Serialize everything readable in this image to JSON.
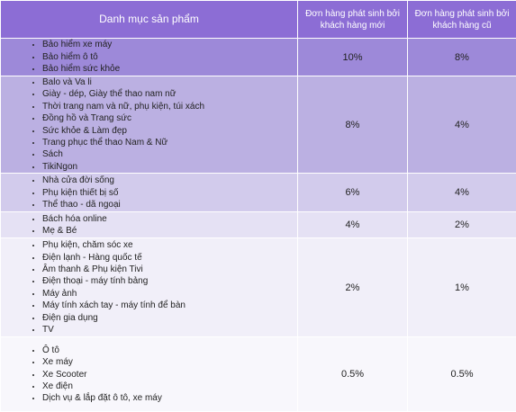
{
  "table": {
    "header": [
      "Danh mục sản phẩm",
      "Đơn hàng phát sinh bởi khách hàng mới",
      "Đơn hàng phát sinh bởi khách hàng cũ"
    ],
    "rows": [
      {
        "items": [
          "Bảo hiểm xe máy",
          "Bảo hiểm ô tô",
          "Bảo hiểm sức khỏe"
        ],
        "new": "10%",
        "old": "8%"
      },
      {
        "items": [
          "Balo và Va li",
          "Giày - dép, Giày thể thao nam nữ",
          "Thời trang nam và nữ, phụ kiện, túi xách",
          "Đồng hồ và Trang sức",
          "Sức khỏe & Làm đẹp",
          "Trang phục thể thao Nam & Nữ",
          "Sách",
          "TikiNgon"
        ],
        "new": "8%",
        "old": "4%"
      },
      {
        "items": [
          "Nhà cửa đời sống",
          "Phụ kiện thiết bị số",
          "Thể thao - dã ngoại"
        ],
        "new": "6%",
        "old": "4%"
      },
      {
        "items": [
          "Bách hóa online",
          "Mẹ & Bé"
        ],
        "new": "4%",
        "old": "2%"
      },
      {
        "items": [
          "Phụ kiện, chăm sóc xe",
          "Điện lạnh - Hàng quốc tế",
          "Âm thanh & Phụ kiện Tivi",
          "Điện thoại - máy tính bảng",
          "Máy ảnh",
          "Máy tính xách tay - máy tính để bàn",
          "Điện gia dụng",
          "TV"
        ],
        "new": "2%",
        "old": "1%"
      },
      {
        "items": [
          "Ô tô",
          "Xe máy",
          "Xe Scooter",
          "Xe điện",
          "Dịch vụ & lắp đặt ô tô, xe máy"
        ],
        "new": "0.5%",
        "old": "0.5%"
      }
    ]
  }
}
